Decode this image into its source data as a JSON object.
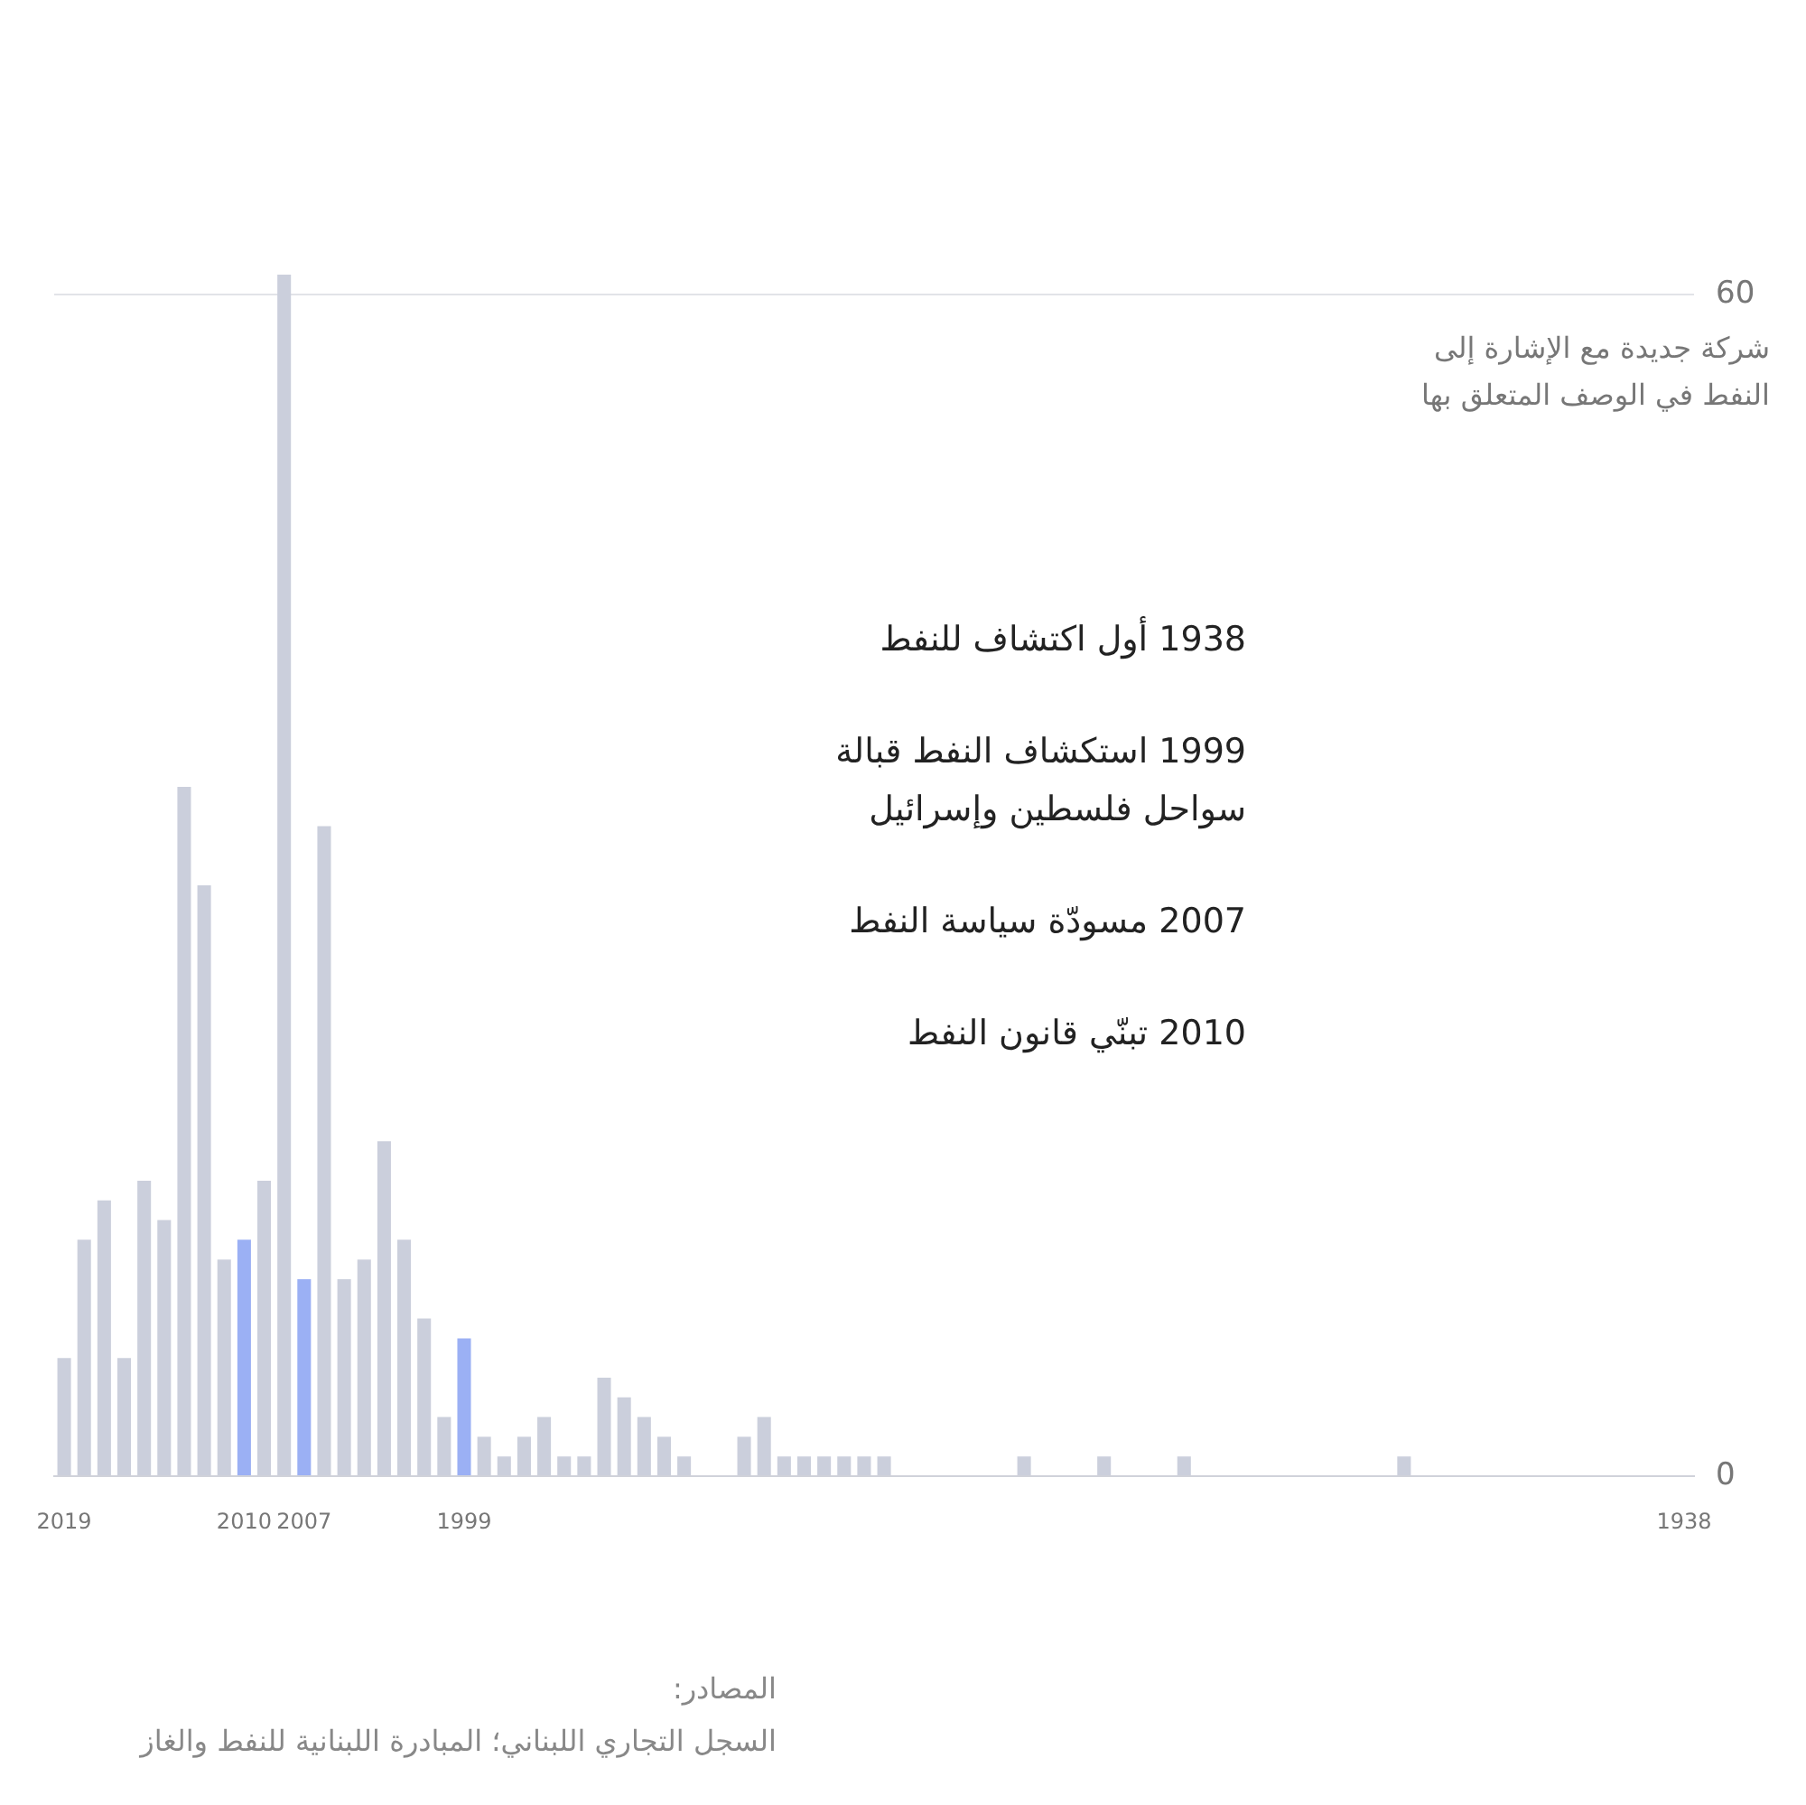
{
  "chart_data": {
    "type": "bar",
    "ylabel": "شركة جديدة مع الإشارة إلى\nالنفط في الوصف المتعلق بها",
    "categories": [
      "2019",
      null,
      null,
      null,
      null,
      null,
      null,
      null,
      null,
      "2010",
      null,
      null,
      "2007",
      null,
      null,
      null,
      null,
      null,
      null,
      null,
      "1999",
      null,
      null,
      null,
      null,
      null,
      null,
      null,
      null,
      null,
      null,
      null,
      null,
      null,
      null,
      null,
      null,
      null,
      null,
      null,
      null,
      null,
      null,
      null,
      null,
      null,
      null,
      null,
      null,
      null,
      null,
      null,
      null,
      null,
      null,
      null,
      null,
      null,
      null,
      null,
      null,
      null,
      null,
      null,
      null,
      null,
      null,
      null,
      null,
      null,
      null,
      null,
      null,
      null,
      null,
      null,
      null,
      null,
      null,
      null,
      null,
      "1938"
    ],
    "values": [
      6,
      12,
      14,
      6,
      15,
      13,
      35,
      30,
      11,
      12,
      15,
      61,
      10,
      33,
      10,
      11,
      17,
      12,
      8,
      3,
      7,
      2,
      1,
      2,
      3,
      1,
      1,
      5,
      4,
      3,
      2,
      1,
      0,
      0,
      2,
      3,
      1,
      1,
      1,
      1,
      1,
      1,
      0,
      0,
      0,
      0,
      0,
      0,
      1,
      0,
      0,
      0,
      1,
      0,
      0,
      0,
      1,
      0,
      0,
      0,
      0,
      0,
      0,
      0,
      0,
      0,
      0,
      1,
      0,
      0,
      0,
      0,
      0,
      0,
      0,
      0,
      0,
      0,
      0,
      0,
      0,
      0
    ],
    "colors": [
      "#cbcfdc",
      "#cbcfdc",
      "#cbcfdc",
      "#cbcfdc",
      "#cbcfdc",
      "#cbcfdc",
      "#cbcfdc",
      "#cbcfdc",
      "#cbcfdc",
      "#9bb0f4",
      "#cbcfdc",
      "#cbcfdc",
      "#9bb0f4",
      "#cbcfdc",
      "#cbcfdc",
      "#cbcfdc",
      "#cbcfdc",
      "#cbcfdc",
      "#cbcfdc",
      "#cbcfdc",
      "#9bb0f4",
      "#cbcfdc",
      "#cbcfdc",
      "#cbcfdc",
      "#cbcfdc",
      "#cbcfdc",
      "#cbcfdc",
      "#cbcfdc",
      "#cbcfdc",
      "#cbcfdc",
      "#cbcfdc",
      "#cbcfdc",
      "#cbcfdc",
      "#cbcfdc",
      "#cbcfdc",
      "#cbcfdc",
      "#cbcfdc",
      "#cbcfdc",
      "#cbcfdc",
      "#cbcfdc",
      "#cbcfdc",
      "#cbcfdc",
      "#cbcfdc",
      "#cbcfdc",
      "#cbcfdc",
      "#cbcfdc",
      "#cbcfdc",
      "#cbcfdc",
      "#cbcfdc",
      "#cbcfdc",
      "#cbcfdc",
      "#cbcfdc",
      "#cbcfdc",
      "#cbcfdc",
      "#cbcfdc",
      "#cbcfdc",
      "#cbcfdc",
      "#cbcfdc",
      "#cbcfdc",
      "#cbcfdc",
      "#cbcfdc",
      "#cbcfdc",
      "#cbcfdc",
      "#cbcfdc",
      "#cbcfdc",
      "#cbcfdc",
      "#cbcfdc",
      "#cbcfdc",
      "#cbcfdc",
      "#cbcfdc",
      "#cbcfdc",
      "#cbcfdc",
      "#cbcfdc",
      "#cbcfdc",
      "#cbcfdc",
      "#cbcfdc",
      "#cbcfdc",
      "#cbcfdc",
      "#cbcfdc",
      "#cbcfdc",
      "#cbcfdc",
      "#cbcfdc"
    ],
    "ylim": [
      0,
      61
    ],
    "yticks": [
      0,
      60
    ],
    "grid": "y",
    "annotations": [
      "1938 أول اكتشاف للنفط",
      "1999 استكشاف النفط قبالة\nسواحل فلسطين وإسرائيل",
      "2007 مسودّة سياسة النفط",
      "2010 تبنّي قانون النفط",
      "المصادر:\nالسجل التجاري اللبناني؛ المبادرة اللبنانية للنفط والغاز"
    ]
  }
}
